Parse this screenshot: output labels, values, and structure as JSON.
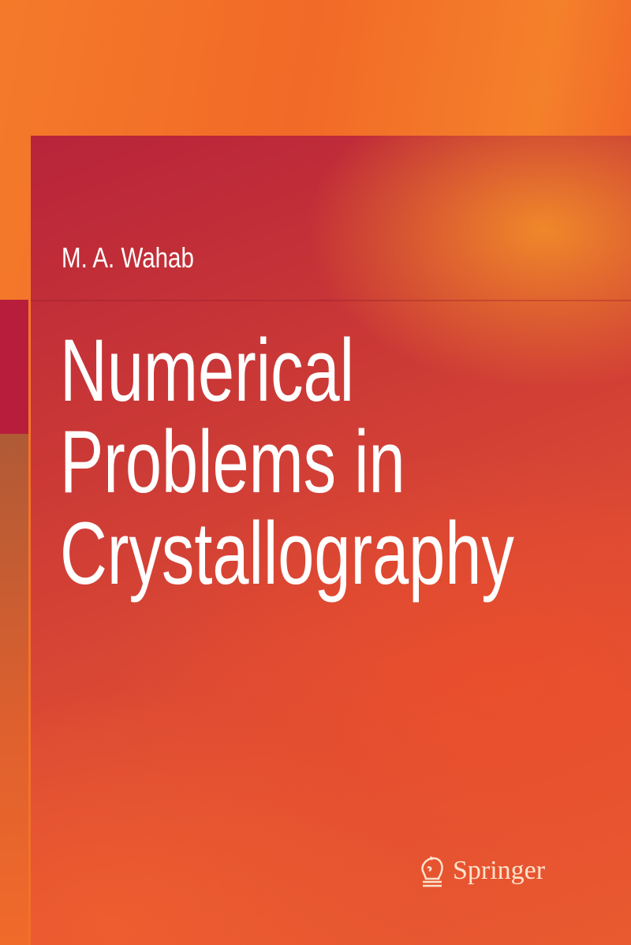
{
  "cover": {
    "author": "M. A. Wahab",
    "title_lines": [
      "Numerical",
      "Problems in",
      "Crystallography"
    ],
    "publisher": "Springer",
    "publisher_logo_icon": "knight-chess-icon",
    "colors": {
      "background": "#f47a2a",
      "panel": "#c8303a",
      "accent_strip": "#b81e3c",
      "text": "#ffffff"
    }
  }
}
